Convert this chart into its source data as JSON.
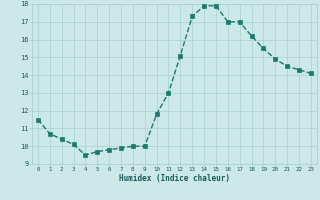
{
  "x": [
    0,
    1,
    2,
    3,
    4,
    5,
    6,
    7,
    8,
    9,
    10,
    11,
    12,
    13,
    14,
    15,
    16,
    17,
    18,
    19,
    20,
    21,
    22,
    23
  ],
  "y": [
    11.5,
    10.7,
    10.4,
    10.1,
    9.5,
    9.7,
    9.8,
    9.9,
    10.0,
    10.0,
    11.8,
    13.0,
    15.1,
    17.3,
    17.9,
    17.9,
    17.0,
    17.0,
    16.2,
    15.5,
    14.9,
    14.5,
    14.3,
    14.1
  ],
  "xlabel": "Humidex (Indice chaleur)",
  "ylim": [
    9,
    18
  ],
  "xlim": [
    -0.5,
    23.5
  ],
  "yticks": [
    9,
    10,
    11,
    12,
    13,
    14,
    15,
    16,
    17,
    18
  ],
  "xticks": [
    0,
    1,
    2,
    3,
    4,
    5,
    6,
    7,
    8,
    9,
    10,
    11,
    12,
    13,
    14,
    15,
    16,
    17,
    18,
    19,
    20,
    21,
    22,
    23
  ],
  "line_color": "#1a7a6e",
  "marker_color": "#1a7a6e",
  "bg_color": "#cce8e8",
  "grid_color": "#a8d0d0",
  "tick_label_color": "#1a5a5a",
  "xlabel_color": "#1a5a5a",
  "line_width": 1.0,
  "marker_size": 2.5
}
